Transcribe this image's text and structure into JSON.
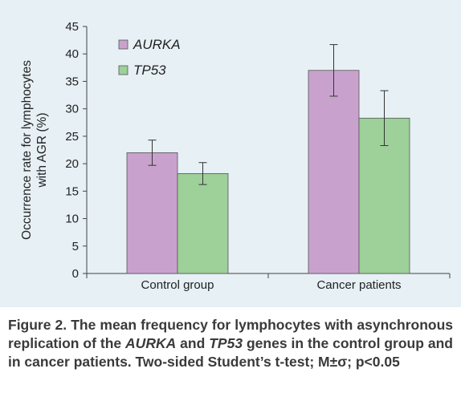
{
  "chart_data": {
    "type": "bar",
    "title": "",
    "xlabel": "",
    "ylabel": "Occurrence rate for lymphocytes with AGR (%)",
    "ylabel_lines": [
      "Occurrence rate for lymphocytes",
      "with AGR (%)"
    ],
    "ylim": [
      0,
      45
    ],
    "yticks": [
      0,
      5,
      10,
      15,
      20,
      25,
      30,
      35,
      40,
      45
    ],
    "categories": [
      "Control group",
      "Cancer patients"
    ],
    "series": [
      {
        "name": "AURKA",
        "color": "#c8a2cd",
        "values": [
          22.0,
          37.0
        ],
        "errors": [
          2.3,
          4.7
        ]
      },
      {
        "name": "TP53",
        "color": "#9ed09a",
        "values": [
          18.2,
          28.3
        ],
        "errors": [
          2.0,
          5.0
        ]
      }
    ],
    "legend_position": "top-left",
    "grid": false
  },
  "caption": {
    "prefix": "Figure 2. The mean frequency for lymphocytes with asynchronous replication of the ",
    "gene1": "AURKA",
    "middle": " and ",
    "gene2": "TP53",
    "suffix": " genes in the control group and in cancer patients. Two-sided Student’s t-test; M±σ; p<0.05"
  }
}
